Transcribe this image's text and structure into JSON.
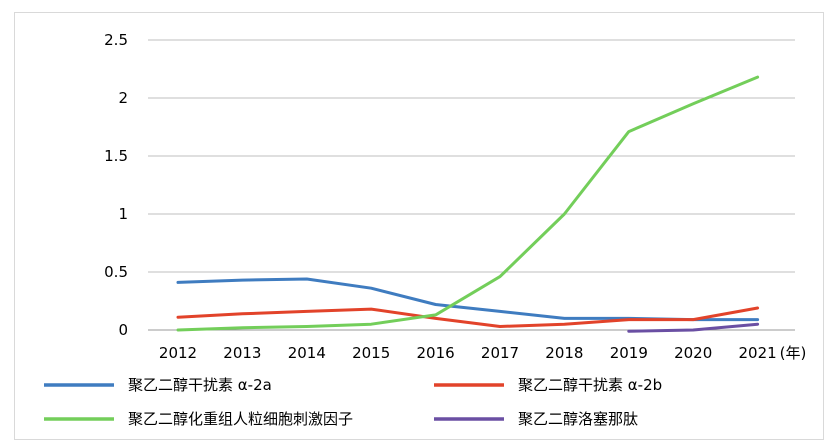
{
  "chart_data": {
    "type": "line",
    "title": "",
    "xlabel": "",
    "x_unit_label": "(年)",
    "ylabel": "",
    "categories": [
      "2012",
      "2013",
      "2014",
      "2015",
      "2016",
      "2017",
      "2018",
      "2019",
      "2020",
      "2021"
    ],
    "ylim": [
      0,
      2.5
    ],
    "yticks": [
      "0",
      "0.5",
      "1",
      "1.5",
      "2",
      "2.5"
    ],
    "grid": true,
    "legend_position": "bottom",
    "series": [
      {
        "name": "聚乙二醇干扰素 α-2a",
        "color": "#3f7cc0",
        "values": [
          0.41,
          0.43,
          0.44,
          0.36,
          0.22,
          0.16,
          0.1,
          0.1,
          0.09,
          0.09
        ]
      },
      {
        "name": "聚乙二醇干扰素 α-2b",
        "color": "#e2432a",
        "values": [
          0.11,
          0.14,
          0.16,
          0.18,
          0.1,
          0.03,
          0.05,
          0.09,
          0.09,
          0.19
        ]
      },
      {
        "name": "聚乙二醇化重组人粒细胞刺激因子",
        "color": "#73ce5a",
        "values": [
          0.0,
          0.02,
          0.03,
          0.05,
          0.13,
          0.46,
          1.0,
          1.71,
          1.95,
          2.18
        ]
      },
      {
        "name": "聚乙二醇洛塞那肽",
        "color": "#6a4fa3",
        "values": [
          null,
          null,
          null,
          null,
          null,
          null,
          null,
          -0.01,
          0.0,
          0.05
        ]
      }
    ]
  }
}
